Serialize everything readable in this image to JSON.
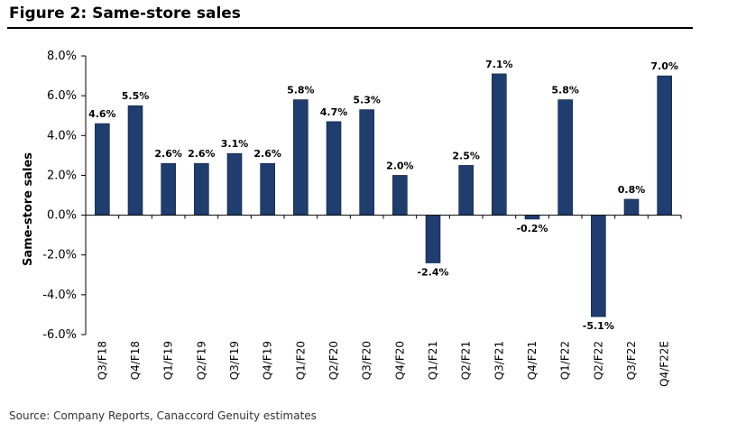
{
  "header": {
    "title": "Figure 2: Same-store sales"
  },
  "footer": {
    "source": "Source: Company Reports, Canaccord Genuity estimates"
  },
  "chart_data": {
    "type": "bar",
    "title": "",
    "xlabel": "",
    "ylabel": "Same-store sales",
    "ylim": [
      -6.0,
      8.0
    ],
    "yticks": [
      8.0,
      6.0,
      4.0,
      2.0,
      0.0,
      -2.0,
      -4.0,
      -6.0
    ],
    "ytick_labels": [
      "8.0%",
      "6.0%",
      "4.0%",
      "2.0%",
      "0.0%",
      "-2.0%",
      "-4.0%",
      "-6.0%"
    ],
    "categories": [
      "Q3/F18",
      "Q4/F18",
      "Q1/F19",
      "Q2/F19",
      "Q3/F19",
      "Q4/F19",
      "Q1/F20",
      "Q2/F20",
      "Q3/F20",
      "Q4/F20",
      "Q1/F21",
      "Q2/F21",
      "Q3/F21",
      "Q4/F21",
      "Q1/F22",
      "Q2/F22",
      "Q3/F22",
      "Q4/F22E"
    ],
    "values": [
      4.6,
      5.5,
      2.6,
      2.6,
      3.1,
      2.6,
      5.8,
      4.7,
      5.3,
      2.0,
      -2.4,
      2.5,
      7.1,
      -0.2,
      5.8,
      -5.1,
      0.8,
      7.0
    ],
    "data_labels": [
      "4.6%",
      "5.5%",
      "2.6%",
      "2.6%",
      "3.1%",
      "2.6%",
      "5.8%",
      "4.7%",
      "5.3%",
      "2.0%",
      "-2.4%",
      "2.5%",
      "7.1%",
      "-0.2%",
      "5.8%",
      "-5.1%",
      "0.8%",
      "7.0%"
    ],
    "bar_color": "#1f3d6e",
    "grid": false,
    "legend": "none"
  }
}
